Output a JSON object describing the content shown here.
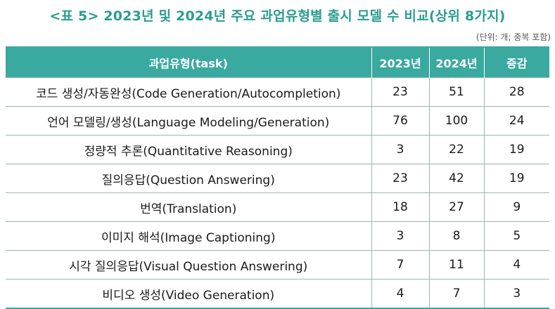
{
  "title": "<표 5> 2023년 및 2024년 주요 과업유형별 출시 모델 수 비교(상위 8가지)",
  "unit_note": "(단위: 개; 중복 포함)",
  "table": {
    "headers": [
      "과업유형(task)",
      "2023년",
      "2024년",
      "증감"
    ],
    "rows": [
      {
        "task": "코드 생성/자동완성(Code Generation/Autocompletion)",
        "y2023": "23",
        "y2024": "51",
        "diff": "28"
      },
      {
        "task": "언어 모델링/생성(Language Modeling/Generation)",
        "y2023": "76",
        "y2024": "100",
        "diff": "24"
      },
      {
        "task": "정량적 추론(Quantitative Reasoning)",
        "y2023": "3",
        "y2024": "22",
        "diff": "19"
      },
      {
        "task": "질의응답(Question Answering)",
        "y2023": "23",
        "y2024": "42",
        "diff": "19"
      },
      {
        "task": "번역(Translation)",
        "y2023": "18",
        "y2024": "27",
        "diff": "9"
      },
      {
        "task": "이미지 해석(Image Captioning)",
        "y2023": "3",
        "y2024": "8",
        "diff": "5"
      },
      {
        "task": "시각 질의응답(Visual Question Answering)",
        "y2023": "7",
        "y2024": "11",
        "diff": "4"
      },
      {
        "task": "비디오 생성(Video Generation)",
        "y2023": "4",
        "y2024": "7",
        "diff": "3"
      }
    ]
  }
}
